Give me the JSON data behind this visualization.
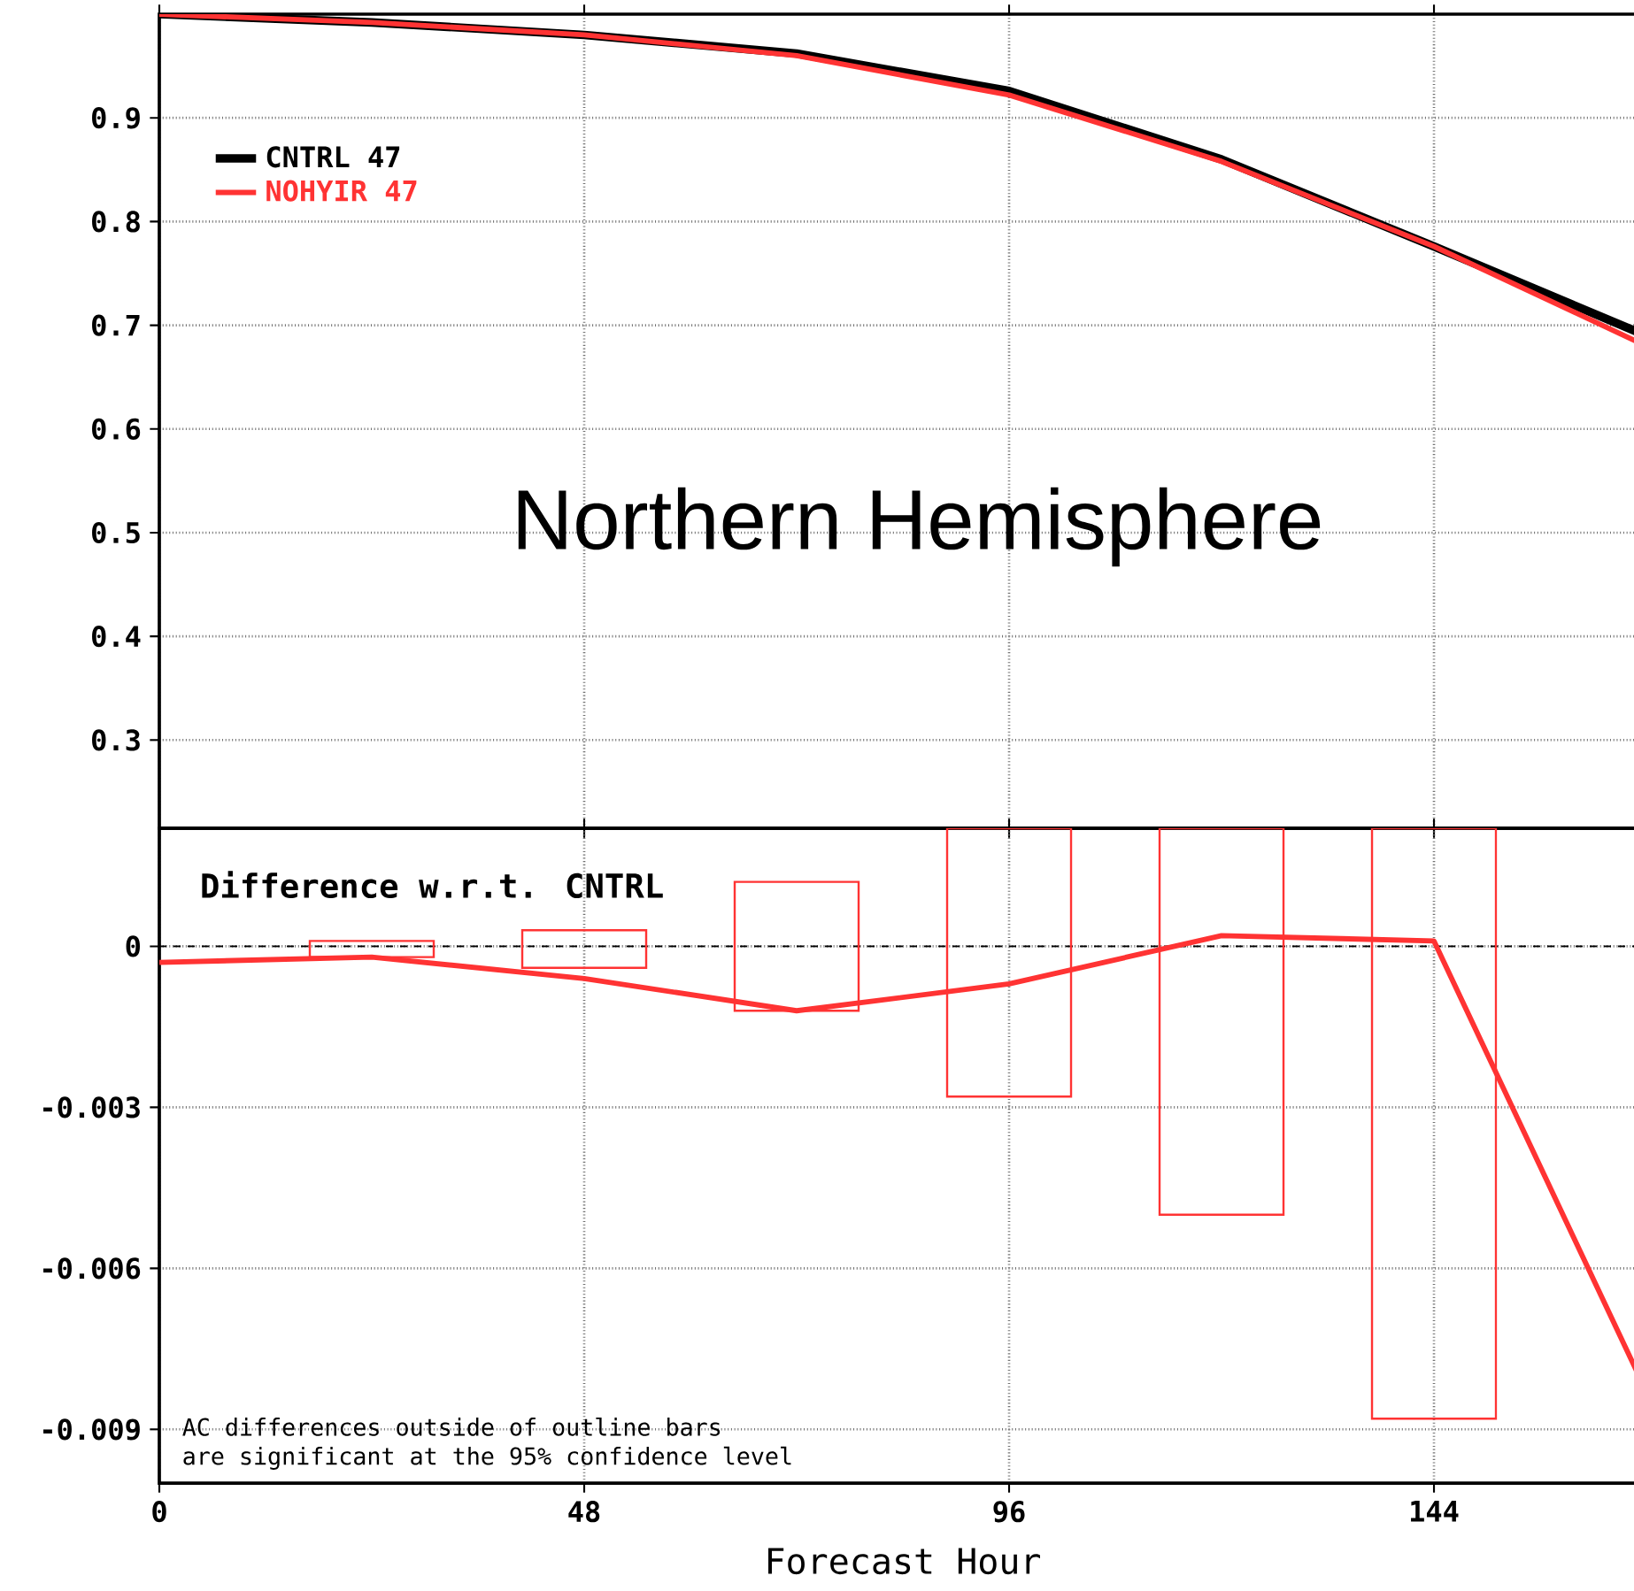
{
  "chart_data": [
    {
      "type": "line",
      "title": "Northern Hemisphere",
      "x": [
        0,
        24,
        48,
        72,
        96,
        120,
        144,
        168
      ],
      "series": [
        {
          "name": "CNTRL   47",
          "color": "#000000",
          "values": [
            1.0,
            0.992,
            0.98,
            0.962,
            0.926,
            0.86,
            0.776,
            0.69
          ]
        },
        {
          "name": "NOHYIR   47",
          "color": "#ff3333",
          "values": [
            1.0,
            0.992,
            0.98,
            0.96,
            0.922,
            0.858,
            0.776,
            0.68
          ]
        }
      ],
      "xlim": [
        0,
        168
      ],
      "xticks": [
        0,
        48,
        96,
        144
      ],
      "ylim": [
        0.215,
        1.0
      ],
      "yticks": [
        0.3,
        0.4,
        0.5,
        0.6,
        0.7,
        0.8,
        0.9
      ],
      "tick_labels": "y",
      "grid": true,
      "legend": "top left"
    },
    {
      "type": "line",
      "xlabel": "Forecast Hour",
      "annotations": [
        "Difference w.r.t. CNTRL",
        "AC differences outside of outline bars",
        "are significant at the 95% confidence level"
      ],
      "series": [
        {
          "color": "#ff3333",
          "x": [
            0,
            24,
            48,
            72,
            96,
            120,
            144,
            168
          ],
          "values": [
            -0.0003,
            -0.0002,
            -0.0006,
            -0.0012,
            -0.0007,
            0.0002,
            0.0001,
            -0.0083
          ]
        },
        {
          "type": "bar",
          "color": "#ff3333",
          "x": [
            24,
            48,
            72,
            96,
            120,
            144
          ],
          "base": [
            -0.0002,
            -0.0004,
            -0.0012,
            -0.0028,
            -0.005,
            -0.0088
          ],
          "values": [
            0.0003,
            0.0007,
            0.0024,
            0.005,
            0.0072,
            0.011
          ]
        }
      ],
      "ref_lines": [
        {
          "axis": "y",
          "value": 0,
          "color": "#000000",
          "line_style": "dashed"
        }
      ],
      "xlim": [
        0,
        168
      ],
      "xticks": [
        0,
        48,
        96,
        144
      ],
      "ylim": [
        -0.01,
        0.0022
      ],
      "yticks": [
        {
          "value": 0,
          "label": "0"
        },
        {
          "value": -0.003,
          "label": "-0.003"
        },
        {
          "value": -0.006,
          "label": "-0.006"
        },
        {
          "value": -0.009,
          "label": "-0.009"
        }
      ],
      "grid": true
    }
  ]
}
